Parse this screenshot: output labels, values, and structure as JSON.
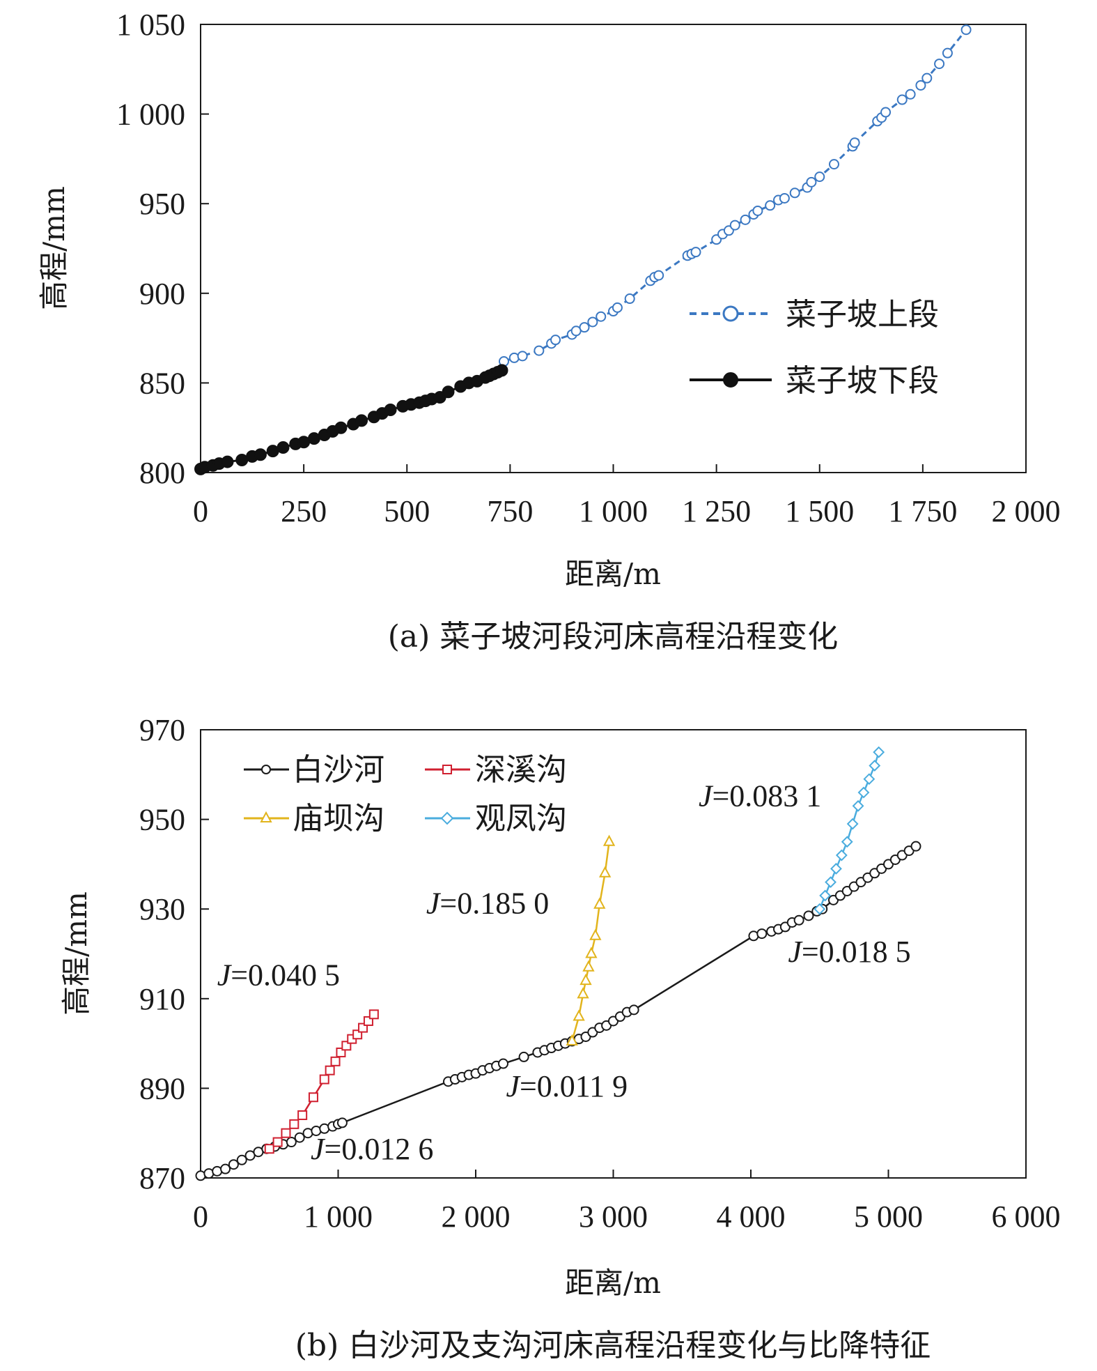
{
  "chart_data": [
    {
      "type": "scatter",
      "caption": "(a) 菜子坡河段河床高程沿程变化",
      "xlabel": "距离/m",
      "ylabel": "高程/mm",
      "xlim": [
        0,
        2000
      ],
      "ylim": [
        800,
        1050
      ],
      "xticks": [
        "0",
        "250",
        "500",
        "750",
        "1 000",
        "1 250",
        "1 500",
        "1 750",
        "2 000"
      ],
      "yticks": [
        "800",
        "850",
        "900",
        "950",
        "1 000",
        "1 050"
      ],
      "grid": false,
      "legend": "right",
      "series": [
        {
          "name": "菜子坡上段",
          "color": "#3b78c2",
          "marker": "open-circle",
          "line": "dashed",
          "x": [
            735,
            760,
            780,
            820,
            850,
            860,
            900,
            910,
            930,
            950,
            970,
            1000,
            1010,
            1040,
            1090,
            1100,
            1110,
            1180,
            1190,
            1200,
            1250,
            1265,
            1280,
            1295,
            1320,
            1340,
            1350,
            1380,
            1400,
            1415,
            1440,
            1470,
            1480,
            1500,
            1535,
            1580,
            1585,
            1640,
            1650,
            1660,
            1700,
            1720,
            1745,
            1760,
            1790,
            1810,
            1855
          ],
          "y": [
            862,
            864,
            865,
            868,
            872,
            874,
            877,
            879,
            881,
            884,
            887,
            890,
            892,
            897,
            907,
            909,
            910,
            921,
            922,
            923,
            930,
            933,
            935,
            938,
            941,
            944,
            946,
            949,
            952,
            953,
            956,
            959,
            962,
            965,
            972,
            982,
            984,
            996,
            998,
            1001,
            1008,
            1011,
            1016,
            1020,
            1028,
            1034,
            1047
          ]
        },
        {
          "name": "菜子坡下段",
          "color": "#111111",
          "marker": "filled-circle",
          "line": "solid",
          "x": [
            0,
            10,
            30,
            45,
            65,
            100,
            125,
            145,
            175,
            200,
            230,
            250,
            275,
            300,
            320,
            340,
            370,
            390,
            420,
            440,
            460,
            490,
            510,
            530,
            545,
            560,
            580,
            600,
            630,
            650,
            670,
            690,
            700,
            710,
            720,
            730
          ],
          "y": [
            802,
            803,
            804,
            805,
            806,
            807,
            809,
            810,
            812,
            814,
            816,
            817,
            819,
            821,
            823,
            825,
            827,
            829,
            831,
            833,
            835,
            837,
            838,
            839,
            840,
            841,
            842,
            845,
            848,
            850,
            851,
            853,
            854,
            855,
            856,
            857
          ]
        }
      ]
    },
    {
      "type": "line",
      "caption": "(b) 白沙河及支沟河床高程沿程变化与比降特征",
      "xlabel": "距离/m",
      "ylabel": "高程/mm",
      "xlim": [
        0,
        6000
      ],
      "ylim": [
        870,
        970
      ],
      "xticks": [
        "0",
        "1 000",
        "2 000",
        "3 000",
        "4 000",
        "5 000",
        "6 000"
      ],
      "yticks": [
        "870",
        "890",
        "910",
        "930",
        "950",
        "970"
      ],
      "grid": false,
      "legend": "top-left",
      "series": [
        {
          "name": "白沙河",
          "color": "#1a1a1a",
          "marker": "open-circle",
          "x": [
            0,
            60,
            120,
            180,
            240,
            300,
            360,
            420,
            480,
            540,
            600,
            660,
            720,
            780,
            840,
            900,
            960,
            1000,
            1030,
            1800,
            1850,
            1900,
            1950,
            2000,
            2050,
            2100,
            2150,
            2200,
            2350,
            2450,
            2500,
            2550,
            2600,
            2650,
            2700,
            2750,
            2800,
            2850,
            2900,
            2950,
            3000,
            3050,
            3100,
            3150,
            4020,
            4080,
            4150,
            4200,
            4250,
            4300,
            4350,
            4420,
            4480,
            4520,
            4600,
            4650,
            4700,
            4750,
            4800,
            4850,
            4900,
            4950,
            5000,
            5050,
            5100,
            5150,
            5200
          ],
          "y": [
            870.5,
            871,
            871.5,
            872,
            873,
            874,
            875,
            875.8,
            876.5,
            877,
            877.5,
            878,
            879,
            880,
            880.5,
            881,
            881.5,
            882,
            882.3,
            891.5,
            892,
            892.5,
            893,
            893.3,
            894,
            894.5,
            895,
            895.5,
            897,
            898,
            898.5,
            899,
            899.5,
            900,
            900.5,
            901,
            901.5,
            902.5,
            903.5,
            904,
            905,
            906,
            907,
            907.5,
            924,
            924.5,
            925,
            925.5,
            926,
            927,
            927.5,
            928.5,
            929.5,
            930,
            932,
            933,
            934,
            935,
            936,
            937,
            938,
            939,
            940,
            941,
            942,
            943,
            944
          ]
        },
        {
          "name": "深溪沟",
          "color": "#d02030",
          "marker": "open-square",
          "x": [
            500,
            560,
            620,
            680,
            740,
            820,
            900,
            940,
            980,
            1020,
            1060,
            1100,
            1140,
            1180,
            1220,
            1260
          ],
          "y": [
            876.5,
            878,
            880,
            882,
            884,
            888,
            892,
            894,
            896,
            898,
            899.5,
            901,
            902,
            903.5,
            905,
            906.5
          ]
        },
        {
          "name": "庙坝沟",
          "color": "#e2b41c",
          "marker": "open-triangle",
          "x": [
            2700,
            2750,
            2780,
            2800,
            2820,
            2840,
            2870,
            2900,
            2940,
            2970
          ],
          "y": [
            900.5,
            906,
            911,
            914,
            917,
            920,
            924,
            931,
            938,
            945
          ]
        },
        {
          "name": "观凤沟",
          "color": "#4aacde",
          "marker": "open-diamond",
          "x": [
            4500,
            4540,
            4580,
            4620,
            4660,
            4700,
            4740,
            4780,
            4820,
            4860,
            4900,
            4930
          ],
          "y": [
            930,
            933,
            936,
            939,
            942,
            945,
            949,
            953,
            956,
            959,
            962,
            965
          ]
        }
      ],
      "annotations": [
        {
          "prefix": "J",
          "text": "=0.040 5",
          "x": 120,
          "y": 913
        },
        {
          "prefix": "J",
          "text": "=0.012 6",
          "x": 800,
          "y": 874.2
        },
        {
          "prefix": "J",
          "text": "=0.185 0",
          "x": 1640,
          "y": 929
        },
        {
          "prefix": "J",
          "text": "=0.011 9",
          "x": 2220,
          "y": 888.2
        },
        {
          "prefix": "J",
          "text": "=0.083 1",
          "x": 3620,
          "y": 953
        },
        {
          "prefix": "J",
          "text": "=0.018 5",
          "x": 4270,
          "y": 918.2
        }
      ]
    }
  ]
}
